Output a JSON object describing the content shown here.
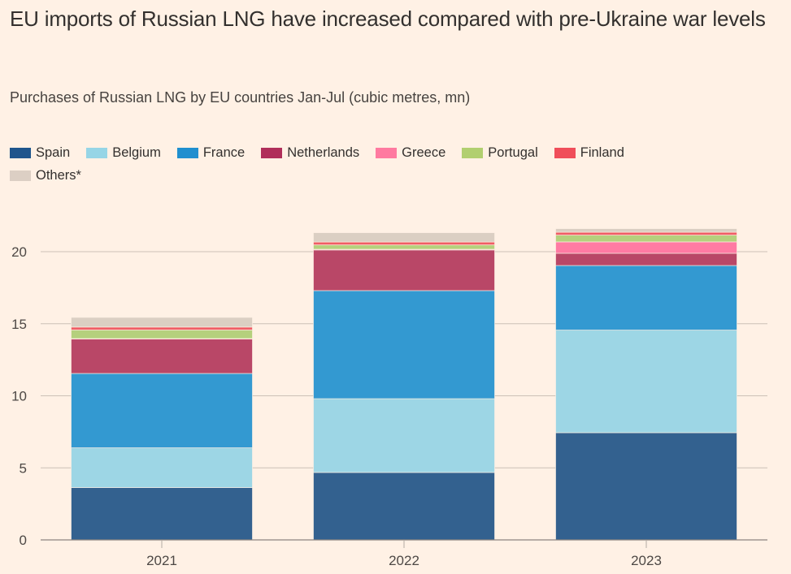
{
  "chart_data": {
    "type": "bar",
    "stacked": true,
    "title": "EU imports of Russian LNG have increased compared with pre-Ukraine war levels",
    "subtitle": "Purchases of Russian LNG by EU countries Jan-Jul (cubic metres, mn)",
    "xlabel": "",
    "ylabel": "",
    "categories": [
      "2021",
      "2022",
      "2023"
    ],
    "ylim": [
      0,
      22
    ],
    "yticks": [
      0,
      5,
      10,
      15,
      20
    ],
    "grid": true,
    "legend_position": "top-left",
    "series": [
      {
        "name": "Spain",
        "color": "#33618f",
        "legend_color": "#1e558c",
        "values": [
          3.63,
          4.68,
          7.44
        ]
      },
      {
        "name": "Belgium",
        "color": "#9dd6e5",
        "legend_color": "#96d5e6",
        "values": [
          2.76,
          5.12,
          7.12
        ]
      },
      {
        "name": "France",
        "color": "#3399d1",
        "legend_color": "#1f8fcf",
        "values": [
          5.16,
          7.5,
          4.48
        ]
      },
      {
        "name": "Netherlands",
        "color": "#b94767",
        "legend_color": "#b02e5a",
        "values": [
          2.39,
          2.82,
          0.85
        ]
      },
      {
        "name": "Greece",
        "color": "#ff7ba3",
        "legend_color": "#ff7aa0",
        "values": [
          0.03,
          0.05,
          0.79
        ]
      },
      {
        "name": "Portugal",
        "color": "#b5d07d",
        "legend_color": "#b1cf70",
        "values": [
          0.6,
          0.3,
          0.47
        ]
      },
      {
        "name": "Finland",
        "color": "#ef5d65",
        "legend_color": "#f04e5a",
        "values": [
          0.2,
          0.2,
          0.2
        ]
      },
      {
        "name": "Others*",
        "color": "#dbcfc3",
        "legend_color": "#dccfc4",
        "values": [
          0.67,
          0.65,
          0.25
        ]
      }
    ]
  }
}
